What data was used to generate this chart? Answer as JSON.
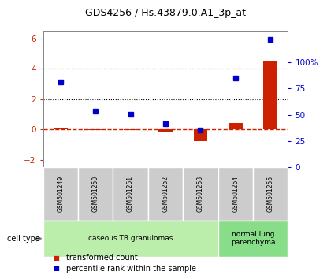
{
  "title": "GDS4256 / Hs.43879.0.A1_3p_at",
  "samples": [
    "GSM501249",
    "GSM501250",
    "GSM501251",
    "GSM501252",
    "GSM501253",
    "GSM501254",
    "GSM501255"
  ],
  "transformed_count": [
    0.05,
    -0.05,
    -0.05,
    -0.15,
    -0.75,
    0.45,
    4.5
  ],
  "percentile_rank": [
    3.1,
    1.2,
    1.0,
    0.35,
    -0.05,
    3.4,
    5.95
  ],
  "cell_types": [
    {
      "label": "caseous TB granulomas",
      "span": [
        0,
        5
      ],
      "color": "#bbeeaa"
    },
    {
      "label": "normal lung\nparenchyma",
      "span": [
        5,
        7
      ],
      "color": "#88dd88"
    }
  ],
  "left_ylim": [
    -2.5,
    6.5
  ],
  "left_yticks": [
    -2,
    0,
    2,
    4,
    6
  ],
  "right_ylim": [
    0,
    130
  ],
  "right_yticks": [
    0,
    25,
    50,
    75,
    100
  ],
  "right_yticklabels": [
    "0",
    "25",
    "50",
    "75",
    "100%"
  ],
  "hline_y": 0,
  "dotted_lines": [
    2.0,
    4.0
  ],
  "bar_color": "#cc2200",
  "marker_color": "#0000cc",
  "bar_width": 0.4,
  "background_color": "#ffffff",
  "cell_type_label": "cell type",
  "legend_items": [
    {
      "label": "transformed count",
      "color": "#cc2200"
    },
    {
      "label": "percentile rank within the sample",
      "color": "#0000cc"
    }
  ],
  "gray_box_color": "#cccccc",
  "gray_box_edge": "#aaaaaa"
}
